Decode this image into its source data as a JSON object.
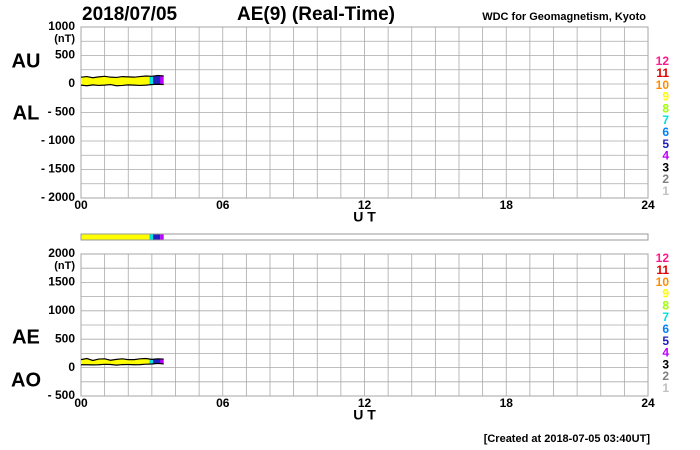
{
  "header": {
    "date": "2018/07/05",
    "title": "AE(9)  (Real-Time)",
    "source": "WDC for Geomagnetism, Kyoto"
  },
  "footer": "[Created at 2018-07-05 03:40UT]",
  "station_scale": {
    "counts": [
      12,
      11,
      10,
      9,
      8,
      7,
      6,
      5,
      4,
      3,
      2,
      1
    ],
    "colors": [
      "#ff1a8c",
      "#e00000",
      "#ff8c00",
      "#ffff00",
      "#a0ff00",
      "#00e0e0",
      "#0080ff",
      "#2020c0",
      "#c000ff",
      "#000000",
      "#808080",
      "#c0c0c0"
    ]
  },
  "chart_data": [
    {
      "type": "line",
      "y_unit": "(nT)",
      "x_label": "U T",
      "x": [
        0,
        0.25,
        0.5,
        0.75,
        1,
        1.25,
        1.5,
        1.75,
        2,
        2.25,
        2.5,
        2.75,
        3,
        3.25,
        3.5
      ],
      "series": [
        {
          "name": "AU",
          "color": "#000000",
          "values": [
            120,
            130,
            110,
            125,
            135,
            120,
            115,
            130,
            125,
            120,
            130,
            140,
            135,
            150,
            140
          ]
        },
        {
          "name": "AL",
          "color": "#000000",
          "values": [
            -20,
            -30,
            -15,
            -25,
            -20,
            -10,
            -30,
            -25,
            -15,
            -20,
            -25,
            -20,
            -10,
            -5,
            -10
          ]
        }
      ],
      "coverage": [
        {
          "x0": 0,
          "x1": 2.9,
          "stations": 9
        },
        {
          "x0": 2.9,
          "x1": 3.05,
          "stations": 7
        },
        {
          "x0": 3.05,
          "x1": 3.35,
          "stations": 5
        },
        {
          "x0": 3.35,
          "x1": 3.5,
          "stations": 4
        }
      ],
      "xlim": [
        0,
        24
      ],
      "xticks": [
        {
          "value": 0,
          "label": "00"
        },
        {
          "value": 6,
          "label": "06"
        },
        12,
        18,
        24
      ],
      "x_grid": [
        0,
        1,
        2,
        3,
        4,
        5,
        6,
        7,
        8,
        9,
        10,
        11,
        12,
        13,
        14,
        15,
        16,
        17,
        18,
        19,
        20,
        21,
        22,
        23,
        24
      ],
      "ylim": [
        -2000,
        1000
      ],
      "yticks": [
        1000,
        500,
        0,
        {
          "value": -500,
          "label": "- 500"
        },
        {
          "value": -1000,
          "label": "- 1000"
        },
        {
          "value": -1500,
          "label": "- 1500"
        },
        {
          "value": -2000,
          "label": "- 2000"
        }
      ],
      "y_grid": [
        1000,
        750,
        500,
        250,
        0,
        -250,
        -500,
        -750,
        -1000,
        -1250,
        -1500,
        -1750,
        -2000
      ]
    },
    {
      "type": "line",
      "y_unit": "(nT)",
      "x_label": "U T",
      "x": [
        0,
        0.25,
        0.5,
        0.75,
        1,
        1.25,
        1.5,
        1.75,
        2,
        2.25,
        2.5,
        2.75,
        3,
        3.25,
        3.5
      ],
      "series": [
        {
          "name": "AE",
          "color": "#000000",
          "values": [
            140,
            160,
            125,
            150,
            155,
            130,
            145,
            155,
            140,
            140,
            155,
            160,
            145,
            155,
            150
          ]
        },
        {
          "name": "AO",
          "color": "#000000",
          "values": [
            50,
            50,
            48,
            50,
            58,
            55,
            43,
            53,
            55,
            50,
            53,
            60,
            63,
            73,
            65
          ]
        }
      ],
      "coverage": [
        {
          "x0": 0,
          "x1": 2.9,
          "stations": 9
        },
        {
          "x0": 2.9,
          "x1": 3.05,
          "stations": 7
        },
        {
          "x0": 3.05,
          "x1": 3.35,
          "stations": 5
        },
        {
          "x0": 3.35,
          "x1": 3.5,
          "stations": 4
        }
      ],
      "xlim": [
        0,
        24
      ],
      "xticks": [
        {
          "value": 0,
          "label": "00"
        },
        {
          "value": 6,
          "label": "06"
        },
        12,
        18,
        24
      ],
      "x_grid": [
        0,
        1,
        2,
        3,
        4,
        5,
        6,
        7,
        8,
        9,
        10,
        11,
        12,
        13,
        14,
        15,
        16,
        17,
        18,
        19,
        20,
        21,
        22,
        23,
        24
      ],
      "ylim": [
        -500,
        2000
      ],
      "yticks": [
        2000,
        1500,
        1000,
        500,
        0,
        {
          "value": -500,
          "label": "- 500"
        }
      ],
      "y_grid": [
        2000,
        1750,
        1500,
        1250,
        1000,
        750,
        500,
        250,
        0,
        -250,
        -500
      ]
    }
  ]
}
